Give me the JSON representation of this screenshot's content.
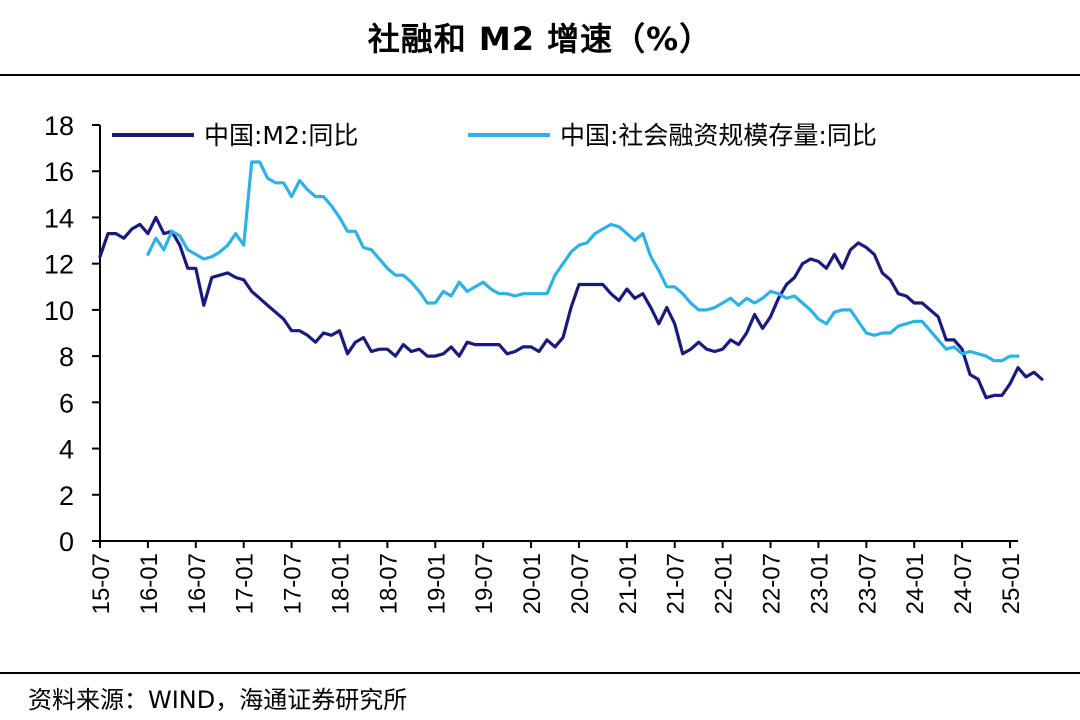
{
  "page": {
    "title": "社融和 M2 增速（%）",
    "source": "资料来源：WIND，海通证券研究所"
  },
  "chart_data": {
    "type": "line",
    "title": "社融和 M2 增速（%）",
    "xlabel": "",
    "ylabel": "",
    "ylim": [
      0,
      18
    ],
    "yticks": [
      0,
      2,
      4,
      6,
      8,
      10,
      12,
      14,
      16,
      18
    ],
    "x_start": "15-07",
    "x_end": "25-02",
    "x_ticks": [
      "15-07",
      "16-01",
      "16-07",
      "17-01",
      "17-07",
      "18-01",
      "18-07",
      "19-01",
      "19-07",
      "20-01",
      "20-07",
      "21-01",
      "21-07",
      "22-01",
      "22-07",
      "23-01",
      "23-07",
      "24-01",
      "24-07",
      "25-01"
    ],
    "legend_position": "top",
    "grid": false,
    "series": [
      {
        "name": "中国:M2:同比",
        "color": "#1a1a7e",
        "start": "15-07",
        "values": [
          12.3,
          13.3,
          13.3,
          13.1,
          13.5,
          13.7,
          13.3,
          14.0,
          13.3,
          13.4,
          12.8,
          11.8,
          11.8,
          10.2,
          11.4,
          11.5,
          11.6,
          11.4,
          11.3,
          10.8,
          10.5,
          10.2,
          9.9,
          9.6,
          9.1,
          9.1,
          8.9,
          8.6,
          9.0,
          8.9,
          9.1,
          8.1,
          8.6,
          8.8,
          8.2,
          8.3,
          8.3,
          8.0,
          8.5,
          8.2,
          8.3,
          8.0,
          8.0,
          8.1,
          8.4,
          8.0,
          8.6,
          8.5,
          8.5,
          8.5,
          8.5,
          8.1,
          8.2,
          8.4,
          8.4,
          8.2,
          8.7,
          8.4,
          8.8,
          10.1,
          11.1,
          11.1,
          11.1,
          11.1,
          10.7,
          10.4,
          10.9,
          10.5,
          10.7,
          10.1,
          9.4,
          10.1,
          9.4,
          8.1,
          8.3,
          8.6,
          8.3,
          8.2,
          8.3,
          8.7,
          8.5,
          9.0,
          9.8,
          9.2,
          9.7,
          10.5,
          11.1,
          11.4,
          12.0,
          12.2,
          12.1,
          11.8,
          12.4,
          11.8,
          12.6,
          12.9,
          12.7,
          12.4,
          11.6,
          11.3,
          10.7,
          10.6,
          10.3,
          10.3,
          10.0,
          9.7,
          8.7,
          8.7,
          8.3,
          7.2,
          7.0,
          6.2,
          6.3,
          6.3,
          6.8,
          7.5,
          7.1,
          7.3,
          7.0
        ]
      },
      {
        "name": "中国:社会融资规模存量:同比",
        "color": "#2eb2e6",
        "start": "16-01",
        "values": [
          12.4,
          13.1,
          12.6,
          13.4,
          13.2,
          12.6,
          12.4,
          12.2,
          12.3,
          12.5,
          12.8,
          13.3,
          12.8,
          16.4,
          16.4,
          15.7,
          15.5,
          15.5,
          14.9,
          15.6,
          15.2,
          14.9,
          14.9,
          14.5,
          14.0,
          13.4,
          13.4,
          12.7,
          12.6,
          12.2,
          11.8,
          11.5,
          11.5,
          11.2,
          10.8,
          10.3,
          10.3,
          10.8,
          10.6,
          11.2,
          10.8,
          11.0,
          11.2,
          10.9,
          10.7,
          10.7,
          10.6,
          10.7,
          10.7,
          10.7,
          10.7,
          11.5,
          12.0,
          12.5,
          12.8,
          12.9,
          13.3,
          13.5,
          13.7,
          13.6,
          13.3,
          13.0,
          13.3,
          12.3,
          11.7,
          11.0,
          11.0,
          10.7,
          10.3,
          10.0,
          10.0,
          10.1,
          10.3,
          10.5,
          10.2,
          10.5,
          10.3,
          10.5,
          10.8,
          10.7,
          10.5,
          10.6,
          10.3,
          10.0,
          9.6,
          9.4,
          9.9,
          10.0,
          10.0,
          9.5,
          9.0,
          8.9,
          9.0,
          9.0,
          9.3,
          9.4,
          9.5,
          9.5,
          9.1,
          8.7,
          8.3,
          8.4,
          8.1,
          8.2,
          8.1,
          8.0,
          7.8,
          7.8,
          8.0,
          8.0
        ]
      }
    ]
  },
  "colors": {
    "m2": "#1a1a7e",
    "tsf": "#2eb2e6",
    "axis": "#000000"
  }
}
